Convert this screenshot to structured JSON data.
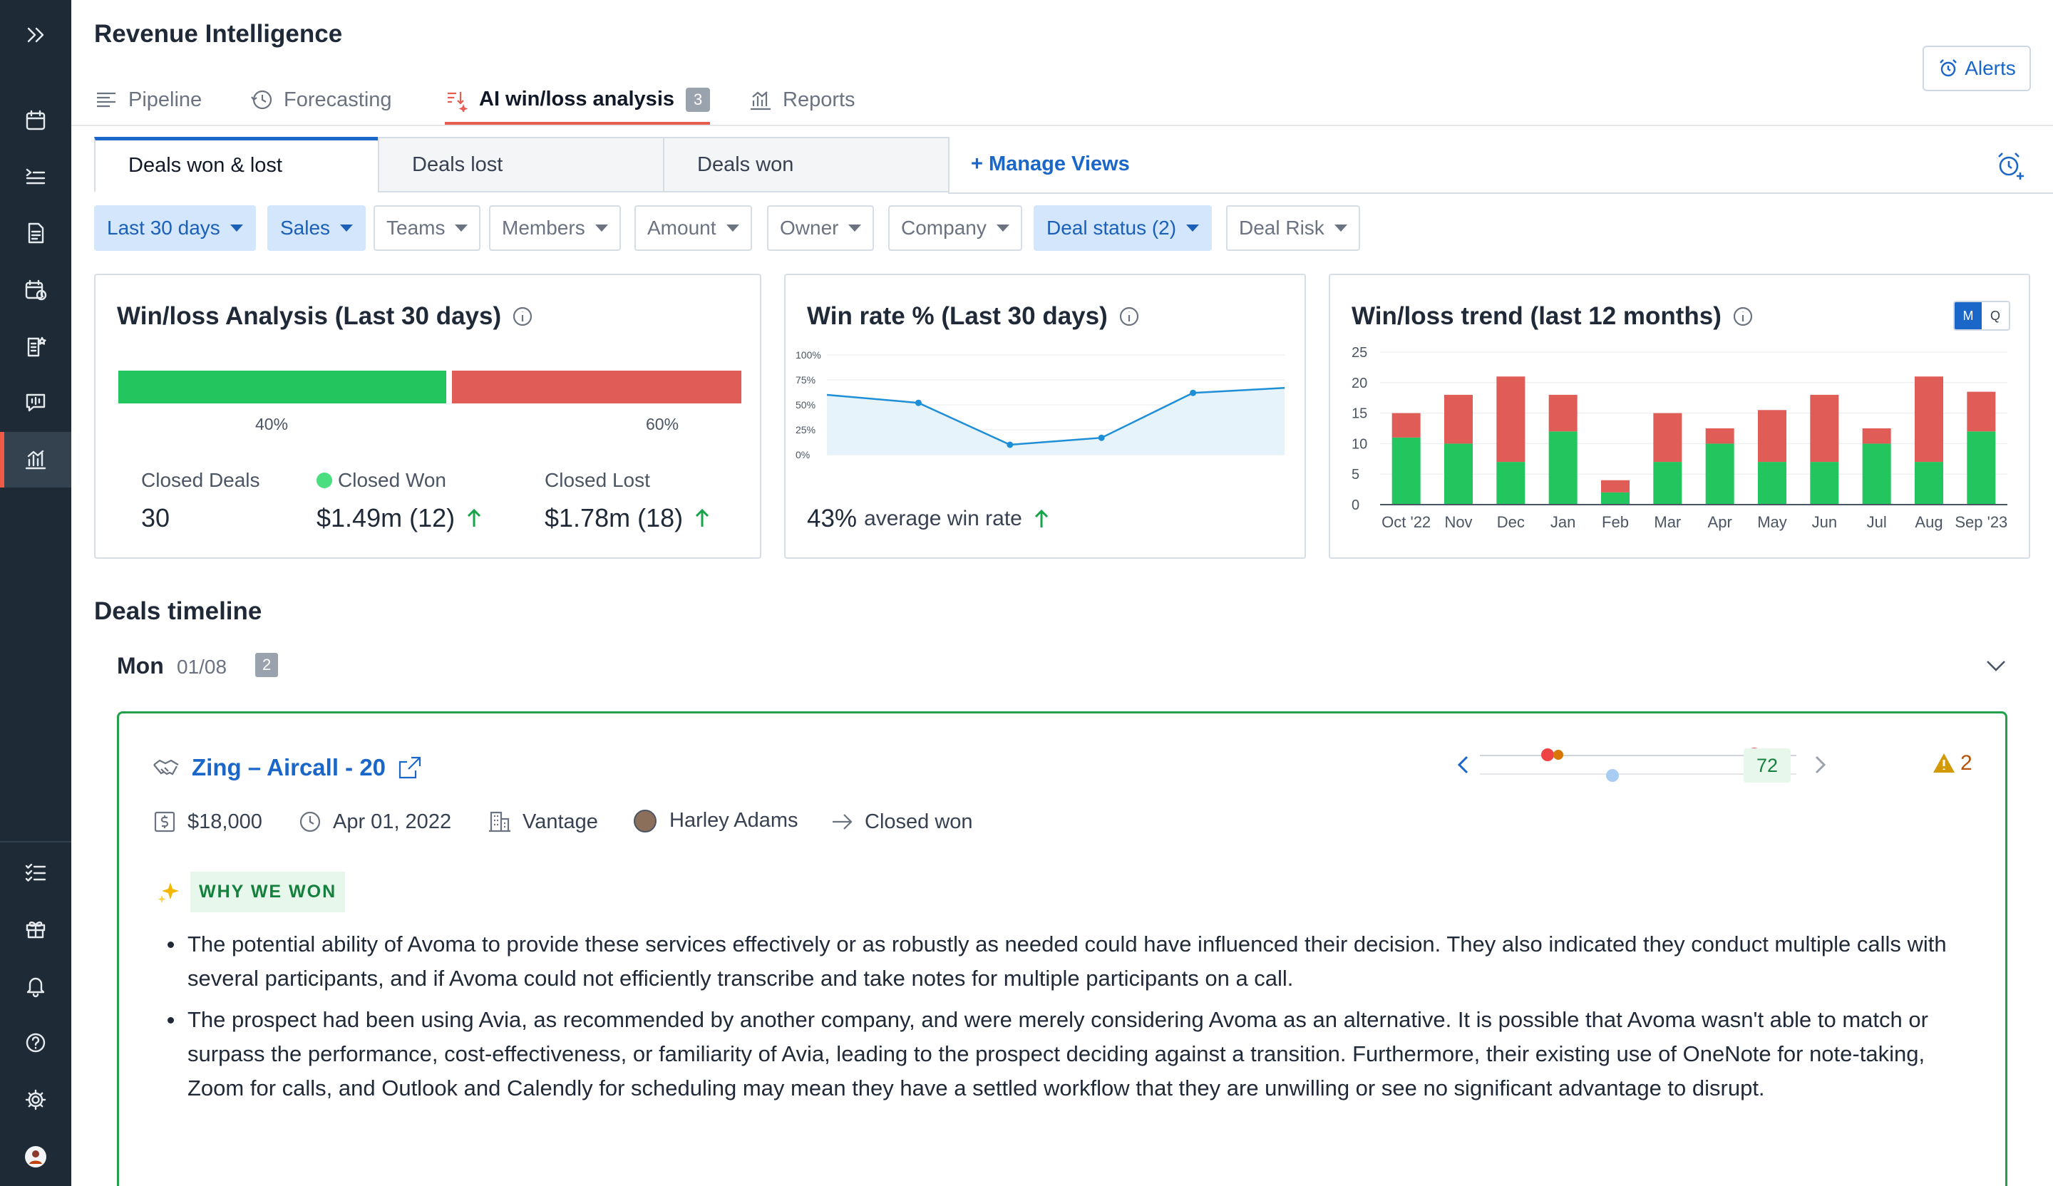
{
  "app": {
    "title": "Revenue Intelligence"
  },
  "main_tabs": [
    {
      "label": "Pipeline",
      "icon": "list-lines-icon"
    },
    {
      "label": "Forecasting",
      "icon": "history-clock-icon"
    },
    {
      "label": "AI win/loss analysis",
      "icon": "ai-sort-icon",
      "badge": "3",
      "active": true
    },
    {
      "label": "Reports",
      "icon": "bar-chart-icon"
    }
  ],
  "alerts": {
    "label": "Alerts"
  },
  "view_tabs": [
    {
      "label": "Deals won & lost",
      "active": true
    },
    {
      "label": "Deals lost"
    },
    {
      "label": "Deals won"
    }
  ],
  "manage_views": "+ Manage Views",
  "filters": [
    {
      "label": "Last 30 days",
      "selected": true
    },
    {
      "label": "Sales",
      "selected": true
    },
    {
      "label": "Teams"
    },
    {
      "label": "Members"
    },
    {
      "label": "Amount"
    },
    {
      "label": "Owner"
    },
    {
      "label": "Company"
    },
    {
      "label": "Deal status (2)",
      "selected": true
    },
    {
      "label": "Deal Risk"
    }
  ],
  "winloss_card": {
    "title": "Win/loss Analysis (Last 30 days)",
    "won_pct_label": "40%",
    "lost_pct_label": "60%",
    "closed_deals_label": "Closed Deals",
    "closed_deals_value": "30",
    "closed_won_label": "Closed Won",
    "closed_won_value": "$1.49m (12)",
    "closed_lost_label": "Closed Lost",
    "closed_lost_value": "$1.78m (18)"
  },
  "winrate_card": {
    "title": "Win rate % (Last 30 days)",
    "avg_value": "43%",
    "avg_label": "average win rate"
  },
  "trend_card": {
    "title": "Win/loss trend (last 12 months)",
    "toggle": [
      "M",
      "Q"
    ],
    "toggle_selected": "M"
  },
  "chart_data": [
    {
      "type": "line",
      "title": "Win rate % (Last 30 days)",
      "y_ticks": [
        "100%",
        "75%",
        "50%",
        "25%",
        "0%"
      ],
      "ylim": [
        0,
        100
      ],
      "x": [
        0,
        1,
        2,
        3,
        4,
        5
      ],
      "values": [
        60,
        52,
        10,
        17,
        62,
        67
      ],
      "grid": true
    },
    {
      "type": "bar",
      "title": "Win/loss trend (last 12 months)",
      "categories": [
        "Oct '22",
        "Nov",
        "Dec",
        "Jan",
        "Feb",
        "Mar",
        "Apr",
        "May",
        "Jun",
        "Jul",
        "Aug",
        "Sep '23"
      ],
      "y_ticks": [
        "25",
        "20",
        "15",
        "10",
        "5",
        "0"
      ],
      "ylim": [
        0,
        25
      ],
      "stacked": true,
      "series": [
        {
          "color": "#22c55e",
          "values": [
            11,
            10,
            7,
            12,
            2,
            7,
            10,
            7,
            7,
            10,
            7,
            12
          ]
        },
        {
          "color": "#e05d57",
          "values": [
            4,
            8,
            14,
            6,
            2,
            8,
            2.5,
            8.5,
            11,
            2.5,
            14,
            6.5
          ]
        }
      ],
      "grid": true
    }
  ],
  "timeline": {
    "title": "Deals timeline",
    "day_label": "Mon",
    "day_date": "01/08",
    "day_count": "2"
  },
  "deal": {
    "title": "Zing – Aircall - 20",
    "amount": "$18,000",
    "date": "Apr 01, 2022",
    "company": "Vantage",
    "owner": "Harley Adams",
    "status": "Closed won",
    "score": "72",
    "risk_count": "2",
    "why_label": "WHY WE WON",
    "reasons": [
      "The potential ability of Avoma to provide these services effectively or as robustly as needed could have influenced their decision. They also indicated they conduct multiple calls with several participants, and if Avoma could not efficiently transcribe and take notes for multiple participants on a call.",
      "The prospect had been using Avia, as recommended by another company, and were merely considering Avoma as an alternative. It is possible that Avoma wasn't able to match or surpass the performance, cost-effectiveness, or familiarity of Avia, leading to the prospect deciding against a transition. Furthermore, their existing use of OneNote for note-taking, Zoom for calls, and Outlook and Calendly for scheduling may mean they have a settled workflow that they are unwilling or see no significant advantage to disrupt."
    ]
  },
  "colors": {
    "accent": "#1a66c9",
    "won": "#22c55e",
    "lost": "#e05d57",
    "sidebar": "#1e2a36"
  }
}
